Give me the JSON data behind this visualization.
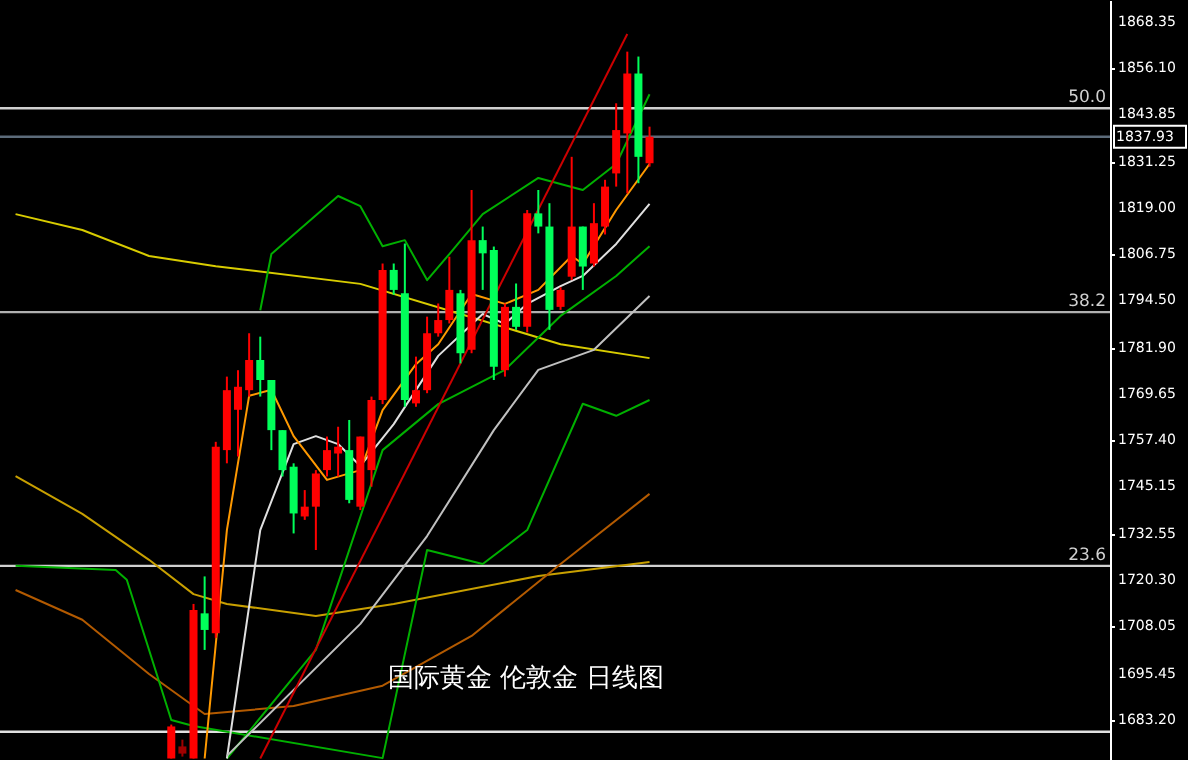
{
  "chart_data": {
    "type": "candlestick",
    "title": "国际黄金 伦敦金 日线图",
    "categories": [
      null,
      null,
      null,
      null,
      null,
      null,
      null,
      null,
      null,
      null,
      null,
      null,
      null,
      null,
      null,
      null,
      null,
      null,
      null,
      null,
      null,
      null,
      null,
      null,
      null,
      null,
      null,
      null,
      null,
      null,
      null,
      null,
      null,
      null,
      null,
      null,
      null,
      null,
      null,
      null,
      null,
      null,
      null,
      null,
      null,
      null,
      null,
      null,
      null,
      null,
      null,
      null,
      null,
      null,
      null,
      null,
      null,
      null,
      null,
      null,
      null,
      null,
      null,
      null,
      null,
      null,
      null,
      null,
      null,
      null,
      null,
      null,
      null,
      null,
      null,
      null,
      null,
      null,
      null,
      null,
      null,
      null,
      null,
      null,
      null,
      null,
      null,
      null,
      null,
      null,
      null,
      null,
      null,
      null,
      null,
      null,
      null,
      null
    ],
    "ohlc": [
      null,
      null,
      null,
      null,
      null,
      null,
      null,
      null,
      null,
      null,
      null,
      null,
      null,
      null,
      [
        1673,
        1682,
        1673,
        1681.5
      ],
      [
        1674.3,
        1678,
        1673.5,
        1676.2
      ],
      [
        1673,
        1714,
        1673,
        1712.4
      ],
      [
        1711.5,
        1721.3,
        1701.8,
        1707.1
      ],
      [
        1706.2,
        1757,
        1705,
        1755.7
      ],
      [
        1754.8,
        1774.3,
        1751.3,
        1770.7
      ],
      [
        1765.5,
        1776,
        1753.1,
        1771.6
      ],
      [
        1770.7,
        1785.8,
        1769,
        1778.7
      ],
      [
        1778.7,
        1784.9,
        1769,
        1773.4
      ],
      [
        1773.4,
        1773.4,
        1754.8,
        1760.1
      ],
      [
        1760.1,
        1760.1,
        1747.8,
        1749.5
      ],
      [
        1750.4,
        1751.3,
        1732.7,
        1738
      ],
      [
        1737.2,
        1744.2,
        1736.3,
        1739.8
      ],
      [
        1739.8,
        1749.5,
        1728.3,
        1748.6
      ],
      [
        1749.5,
        1758.4,
        1747.8,
        1754.8
      ],
      [
        1753.9,
        1761,
        1747.8,
        1755.7
      ],
      [
        1754.8,
        1762.8,
        1740.7,
        1741.6
      ],
      [
        1739.8,
        1758.4,
        1738.9,
        1758.4
      ],
      [
        1749.5,
        1769,
        1745.1,
        1768.1
      ],
      [
        1768.1,
        1804.3,
        1767,
        1802.6
      ],
      [
        1802.6,
        1804.3,
        1796,
        1797.3
      ],
      [
        1796.4,
        1809.6,
        1766.3,
        1768.1
      ],
      [
        1767.2,
        1779.6,
        1766.3,
        1770.7
      ],
      [
        1770.7,
        1790.2,
        1769.9,
        1785.8
      ],
      [
        1785.8,
        1793.7,
        1784.9,
        1789.3
      ],
      [
        1789.3,
        1806.1,
        1788.4,
        1797.3
      ],
      [
        1796.4,
        1797.3,
        1777.8,
        1780.5
      ],
      [
        1781.4,
        1823.8,
        1780.5,
        1810.5
      ],
      [
        1810.5,
        1814.1,
        1797.3,
        1807
      ],
      [
        1807.9,
        1808.8,
        1773.4,
        1776.9
      ],
      [
        1776,
        1793.7,
        1774.3,
        1792.8
      ],
      [
        1792.8,
        1799,
        1786.7,
        1787.5
      ],
      [
        1787.5,
        1818.5,
        1786,
        1817.6
      ],
      [
        1817.6,
        1823.8,
        1812.3,
        1814.1
      ],
      [
        1814.1,
        1820.3,
        1786.7,
        1792
      ],
      [
        1792.8,
        1798,
        1792,
        1797.3
      ],
      [
        1800.8,
        1832.6,
        1799.9,
        1814.1
      ],
      [
        1814.1,
        1814.1,
        1797.3,
        1803.5
      ],
      [
        1804.3,
        1820.3,
        1803.5,
        1815
      ],
      [
        1814.1,
        1826.5,
        1812,
        1824.7
      ],
      [
        1828.2,
        1846.8,
        1824.7,
        1839.7
      ],
      [
        1838.8,
        1860.5,
        1822.9,
        1854.7
      ],
      [
        1854.7,
        1859.2,
        1825.6,
        1832.6
      ],
      [
        1830.9,
        1840.6,
        1830,
        1837.93
      ],
      null,
      null,
      null,
      null,
      null,
      null,
      null,
      null,
      null,
      null,
      null,
      null,
      null,
      null,
      null,
      null,
      null,
      null,
      null,
      null,
      null,
      null,
      null,
      null,
      null,
      null,
      null,
      null,
      null,
      null,
      null,
      null,
      null,
      null,
      null,
      null,
      null,
      null,
      null,
      null
    ],
    "colors": [
      null,
      null,
      null,
      null,
      null,
      null,
      null,
      null,
      null,
      null,
      null,
      null,
      null,
      null,
      "#ff0000",
      "#a00000",
      "#ff0000",
      "#00ff5a",
      "#ff0000",
      "#ff0000",
      "#ff0000",
      "#ff0000",
      "#00ff5a",
      "#00ff5a",
      "#00ff5a",
      "#00ff5a",
      "#ff0000",
      "#ff0000",
      "#ff0000",
      "#ff0000",
      "#00ff5a",
      "#ff0000",
      "#ff0000",
      "#ff0000",
      "#00ff5a",
      "#00ff5a",
      "#ff0000",
      "#ff0000",
      "#ff0000",
      "#ff0000",
      "#00ff5a",
      "#ff0000",
      "#00ff5a",
      "#00ff5a",
      "#ff0000",
      "#00ff5a",
      "#ff0000",
      "#00ff5a",
      "#00ff5a",
      "#ff0000",
      "#ff0000",
      "#00ff5a",
      "#ff0000",
      "#ff0000",
      "#ff0000",
      "#ff0000",
      "#00ff5a",
      "#ff0000",
      null,
      null,
      null,
      null,
      null,
      null,
      null,
      null,
      null,
      null,
      null,
      null,
      null,
      null,
      null,
      null,
      null,
      null,
      null,
      null,
      null,
      null,
      null,
      null,
      null,
      null,
      null,
      null,
      null,
      null,
      null,
      null,
      null,
      null,
      null,
      null,
      null,
      null,
      null,
      null
    ],
    "series": [
      {
        "type": "line",
        "color": "#d8cc00",
        "values": [
          1817.4,
          null,
          null,
          null,
          null,
          null,
          1813.2,
          null,
          null,
          null,
          null,
          null,
          1806.3,
          null,
          null,
          null,
          null,
          null,
          1803.6,
          null,
          null,
          null,
          null,
          null,
          null,
          null,
          null,
          null,
          null,
          null,
          null,
          1798.9,
          null,
          null,
          null,
          null,
          null,
          null,
          null,
          null,
          1790.9,
          null,
          null,
          null,
          null,
          null,
          null,
          null,
          null,
          1782.9,
          null,
          null,
          null,
          null,
          null,
          null,
          null,
          1779.2,
          null,
          null,
          null,
          null,
          null,
          null,
          null,
          null,
          null,
          null,
          null,
          null,
          null,
          null,
          null,
          null,
          null,
          null,
          null,
          null,
          null,
          null,
          null,
          null,
          null,
          null,
          null,
          null,
          null,
          null,
          null,
          null,
          null,
          null,
          null,
          null,
          null,
          null,
          null,
          null
        ]
      },
      {
        "type": "line",
        "color": "#c8a000",
        "values": [
          1747.9,
          null,
          null,
          null,
          null,
          null,
          1737.9,
          null,
          null,
          null,
          null,
          null,
          1725.7,
          null,
          null,
          null,
          1716.6,
          null,
          null,
          1714.0,
          null,
          null,
          null,
          null,
          null,
          null,
          null,
          1710.8,
          null,
          null,
          null,
          null,
          null,
          null,
          1714.0,
          null,
          null,
          null,
          null,
          null,
          null,
          null,
          null,
          null,
          null,
          null,
          null,
          1721.4,
          null,
          null,
          null,
          null,
          null,
          null,
          null,
          null,
          null,
          1725.1,
          null,
          null,
          null,
          null,
          null,
          null,
          null,
          null,
          null,
          null,
          null,
          null,
          null,
          null,
          null,
          null,
          null,
          null,
          null,
          null,
          null,
          null,
          null,
          null,
          null,
          null,
          null,
          null,
          null,
          null,
          null,
          null,
          null,
          null,
          null,
          null,
          null,
          null,
          null,
          null
        ]
      },
      {
        "type": "line",
        "color": "#b35a00",
        "values": [
          1717.7,
          null,
          null,
          null,
          null,
          null,
          1709.8,
          null,
          null,
          null,
          null,
          null,
          1695.4,
          null,
          null,
          null,
          null,
          1684.8,
          null,
          null,
          null,
          null,
          null,
          null,
          null,
          1686.9,
          null,
          null,
          null,
          null,
          null,
          null,
          null,
          1692.3,
          null,
          null,
          null,
          null,
          null,
          null,
          null,
          1705.5,
          null,
          null,
          null,
          null,
          null,
          null,
          null,
          1724.6,
          null,
          null,
          null,
          null,
          null,
          null,
          null,
          1743.2,
          null,
          null,
          null,
          null,
          null,
          null,
          null,
          null,
          null,
          null,
          null,
          null,
          null,
          null,
          null,
          null,
          null,
          null,
          null,
          null,
          null,
          null,
          null,
          null,
          null,
          null,
          null,
          null,
          null,
          null,
          null,
          null,
          null,
          null,
          null,
          null,
          null,
          null,
          null,
          null
        ]
      },
      {
        "type": "line",
        "color": "#00b000",
        "values": [
          1724.1,
          null,
          null,
          null,
          null,
          null,
          null,
          null,
          null,
          1723.0,
          1720.4,
          null,
          null,
          null,
          1683.2,
          null,
          1681.6,
          null,
          null,
          null,
          null,
          null,
          null,
          null,
          null,
          null,
          null,
          null,
          null,
          null,
          null,
          null,
          null,
          1673.1,
          null,
          null,
          null,
          1728.3,
          null,
          null,
          null,
          null,
          1724.6,
          null,
          null,
          null,
          1733.6,
          null,
          null,
          null,
          null,
          1767.1,
          null,
          null,
          1763.9,
          null,
          null,
          1768.1,
          null,
          null,
          null,
          null,
          null,
          null,
          null,
          null,
          null,
          null,
          null,
          null,
          null,
          null,
          null,
          null,
          null,
          null,
          null,
          null,
          null,
          null,
          null,
          null,
          null,
          null,
          null,
          null,
          null,
          null,
          null,
          null,
          null,
          null,
          null,
          null,
          null,
          null,
          null,
          null
        ]
      },
      {
        "type": "line",
        "color": "#00b000",
        "values": [
          null,
          null,
          null,
          null,
          null,
          null,
          null,
          null,
          null,
          null,
          null,
          null,
          null,
          null,
          null,
          null,
          null,
          null,
          null,
          null,
          null,
          null,
          1791.9,
          1806.8,
          null,
          null,
          null,
          null,
          null,
          1822.2,
          null,
          1819.5,
          null,
          1808.9,
          null,
          1810.5,
          null,
          1799.9,
          null,
          1806.8,
          null,
          null,
          1817.4,
          null,
          null,
          null,
          null,
          1827.0,
          null,
          null,
          null,
          1823.8,
          null,
          null,
          1830.7,
          null,
          null,
          1849.2,
          null,
          null,
          null,
          null,
          null,
          null,
          null,
          null,
          null,
          null,
          null,
          null,
          null,
          null,
          null,
          null,
          null,
          null,
          null,
          null,
          null,
          null,
          null,
          null,
          null,
          null,
          null,
          null,
          null,
          null,
          null,
          null,
          null,
          null,
          null,
          null,
          null,
          null,
          null,
          null
        ]
      },
      {
        "type": "line",
        "color": "#00b000",
        "values": [
          null,
          null,
          null,
          null,
          null,
          null,
          null,
          null,
          null,
          null,
          null,
          null,
          null,
          null,
          null,
          null,
          null,
          null,
          null,
          1673.0,
          null,
          null,
          null,
          null,
          null,
          null,
          null,
          1701.8,
          null,
          null,
          null,
          null,
          null,
          1754.8,
          null,
          null,
          null,
          null,
          1767.0,
          null,
          null,
          null,
          null,
          null,
          1776.1,
          null,
          null,
          null,
          null,
          1790.4,
          null,
          null,
          null,
          null,
          1801.0,
          null,
          null,
          1808.9,
          null,
          null,
          null,
          null,
          null,
          null,
          null,
          null,
          null,
          null,
          null,
          null,
          null,
          null,
          null,
          null,
          null,
          null,
          null,
          null,
          null,
          null,
          null,
          null,
          null,
          null,
          null,
          null,
          null,
          null,
          null,
          null,
          null,
          null,
          null,
          null,
          null,
          null,
          null,
          null
        ]
      },
      {
        "type": "line",
        "color": "#e0e0e0",
        "values": [
          null,
          null,
          null,
          null,
          null,
          null,
          null,
          null,
          null,
          null,
          null,
          null,
          null,
          null,
          null,
          null,
          null,
          null,
          null,
          1673.0,
          null,
          null,
          1733.6,
          null,
          null,
          1756.4,
          null,
          1758.5,
          null,
          1756.4,
          null,
          1750.6,
          null,
          null,
          1761.7,
          null,
          null,
          null,
          1779.8,
          null,
          null,
          null,
          1790.9,
          null,
          1788.3,
          null,
          1793.6,
          null,
          null,
          1798.3,
          null,
          1801.0,
          null,
          null,
          1809.5,
          null,
          null,
          1820.1,
          null,
          null,
          null,
          null,
          null,
          null,
          null,
          null,
          null,
          null,
          null,
          null,
          null,
          null,
          null,
          null,
          null,
          null,
          null,
          null,
          null,
          null,
          null,
          null,
          null,
          null,
          null,
          null,
          null,
          null,
          null,
          null,
          null,
          null,
          null,
          null,
          null,
          null,
          null,
          null
        ]
      },
      {
        "type": "line",
        "color": "#c0c0c0",
        "values": [
          null,
          null,
          null,
          null,
          null,
          null,
          null,
          null,
          null,
          null,
          null,
          null,
          null,
          null,
          null,
          null,
          null,
          null,
          null,
          1673.7,
          null,
          null,
          null,
          null,
          null,
          null,
          null,
          null,
          null,
          null,
          null,
          1708.7,
          null,
          null,
          null,
          null,
          null,
          1732.0,
          null,
          null,
          null,
          null,
          null,
          1760.1,
          null,
          null,
          null,
          1776.1,
          null,
          null,
          null,
          null,
          1781.4,
          null,
          null,
          null,
          null,
          1795.7,
          null,
          null,
          null,
          null,
          null,
          null,
          null,
          null,
          null,
          null,
          null,
          null,
          null,
          null,
          null,
          null,
          null,
          null,
          null,
          null,
          null,
          null,
          null,
          null,
          null,
          null,
          null,
          null,
          null,
          null,
          null,
          null,
          null,
          null,
          null,
          null,
          null,
          null,
          null,
          null
        ]
      },
      {
        "type": "line",
        "color": "#ff9900",
        "values": [
          null,
          null,
          null,
          null,
          null,
          null,
          null,
          null,
          null,
          null,
          null,
          null,
          null,
          null,
          null,
          null,
          null,
          1673.0,
          null,
          1733.6,
          null,
          1769.2,
          null,
          1770.8,
          null,
          1758.5,
          null,
          null,
          1746.9,
          null,
          null,
          1749.5,
          null,
          1765.4,
          null,
          null,
          1777.6,
          null,
          1782.9,
          null,
          null,
          1796.2,
          null,
          null,
          1793.6,
          null,
          null,
          1797.3,
          null,
          null,
          1806.3,
          1804.2,
          null,
          null,
          1818.5,
          null,
          null,
          1830.7,
          null,
          null,
          null,
          null,
          null,
          null,
          null,
          null,
          null,
          null,
          null,
          null,
          null,
          null,
          null,
          null,
          null,
          null,
          null,
          null,
          null,
          null,
          null,
          null,
          null,
          null,
          null,
          null,
          null,
          null,
          null,
          null,
          null,
          null,
          null,
          null,
          null,
          null,
          null,
          null
        ]
      },
      {
        "type": "line",
        "color": "#cc0000",
        "values": [
          null,
          null,
          null,
          null,
          null,
          null,
          null,
          null,
          null,
          null,
          null,
          null,
          null,
          null,
          null,
          null,
          null,
          null,
          null,
          null,
          null,
          null,
          1673.0,
          null,
          null,
          null,
          null,
          null,
          null,
          null,
          null,
          null,
          null,
          null,
          null,
          null,
          null,
          null,
          null,
          null,
          null,
          null,
          null,
          null,
          null,
          null,
          null,
          null,
          null,
          null,
          null,
          null,
          null,
          null,
          null,
          1865.2,
          null,
          null,
          null,
          null,
          null,
          null,
          null,
          null,
          null,
          null,
          null,
          null,
          null,
          null,
          null,
          null,
          null,
          null,
          null,
          null,
          null,
          null,
          null,
          null,
          null,
          null,
          null,
          null,
          null,
          null,
          null,
          null,
          null,
          null,
          null,
          null,
          null,
          null,
          null,
          null,
          null,
          null
        ]
      }
    ],
    "ylim": [
      1672.6,
      1874.2
    ],
    "yticks": [
      1868.35,
      {
        "value": 1856.1,
        "label": "1856.10"
      },
      1843.85,
      1831.25,
      {
        "value": 1819,
        "label": "1819.00"
      },
      1806.75,
      {
        "value": 1794.5,
        "label": "1794.50"
      },
      {
        "value": 1781.9,
        "label": "1781.90"
      },
      1769.65,
      {
        "value": 1757.4,
        "label": "1757.40"
      },
      1745.15,
      1732.55,
      {
        "value": 1720.3,
        "label": "1720.30"
      },
      1708.05,
      1695.45,
      {
        "value": 1683.2,
        "label": "1683.20"
      }
    ],
    "tick_labels": "y",
    "ref_lines": [
      {
        "axis": "y",
        "value": 1845.5,
        "color": "#d0d0d0"
      },
      {
        "axis": "y",
        "value": 1791.4,
        "color": "#b0b0b0"
      },
      {
        "axis": "y",
        "value": 1724.1,
        "color": "#d0d0d0"
      },
      {
        "axis": "y",
        "value": 1680.1,
        "color": "#e0e0e0"
      },
      {
        "axis": "y",
        "value": 1837.93,
        "label": "1837.93",
        "color": "#5c6b7a"
      }
    ],
    "annotations": [
      {
        "text": "50.0",
        "y": 1845.5
      },
      {
        "text": "38.2",
        "y": 1791.4
      },
      {
        "text": "23.6",
        "y": 1724.1
      }
    ]
  }
}
